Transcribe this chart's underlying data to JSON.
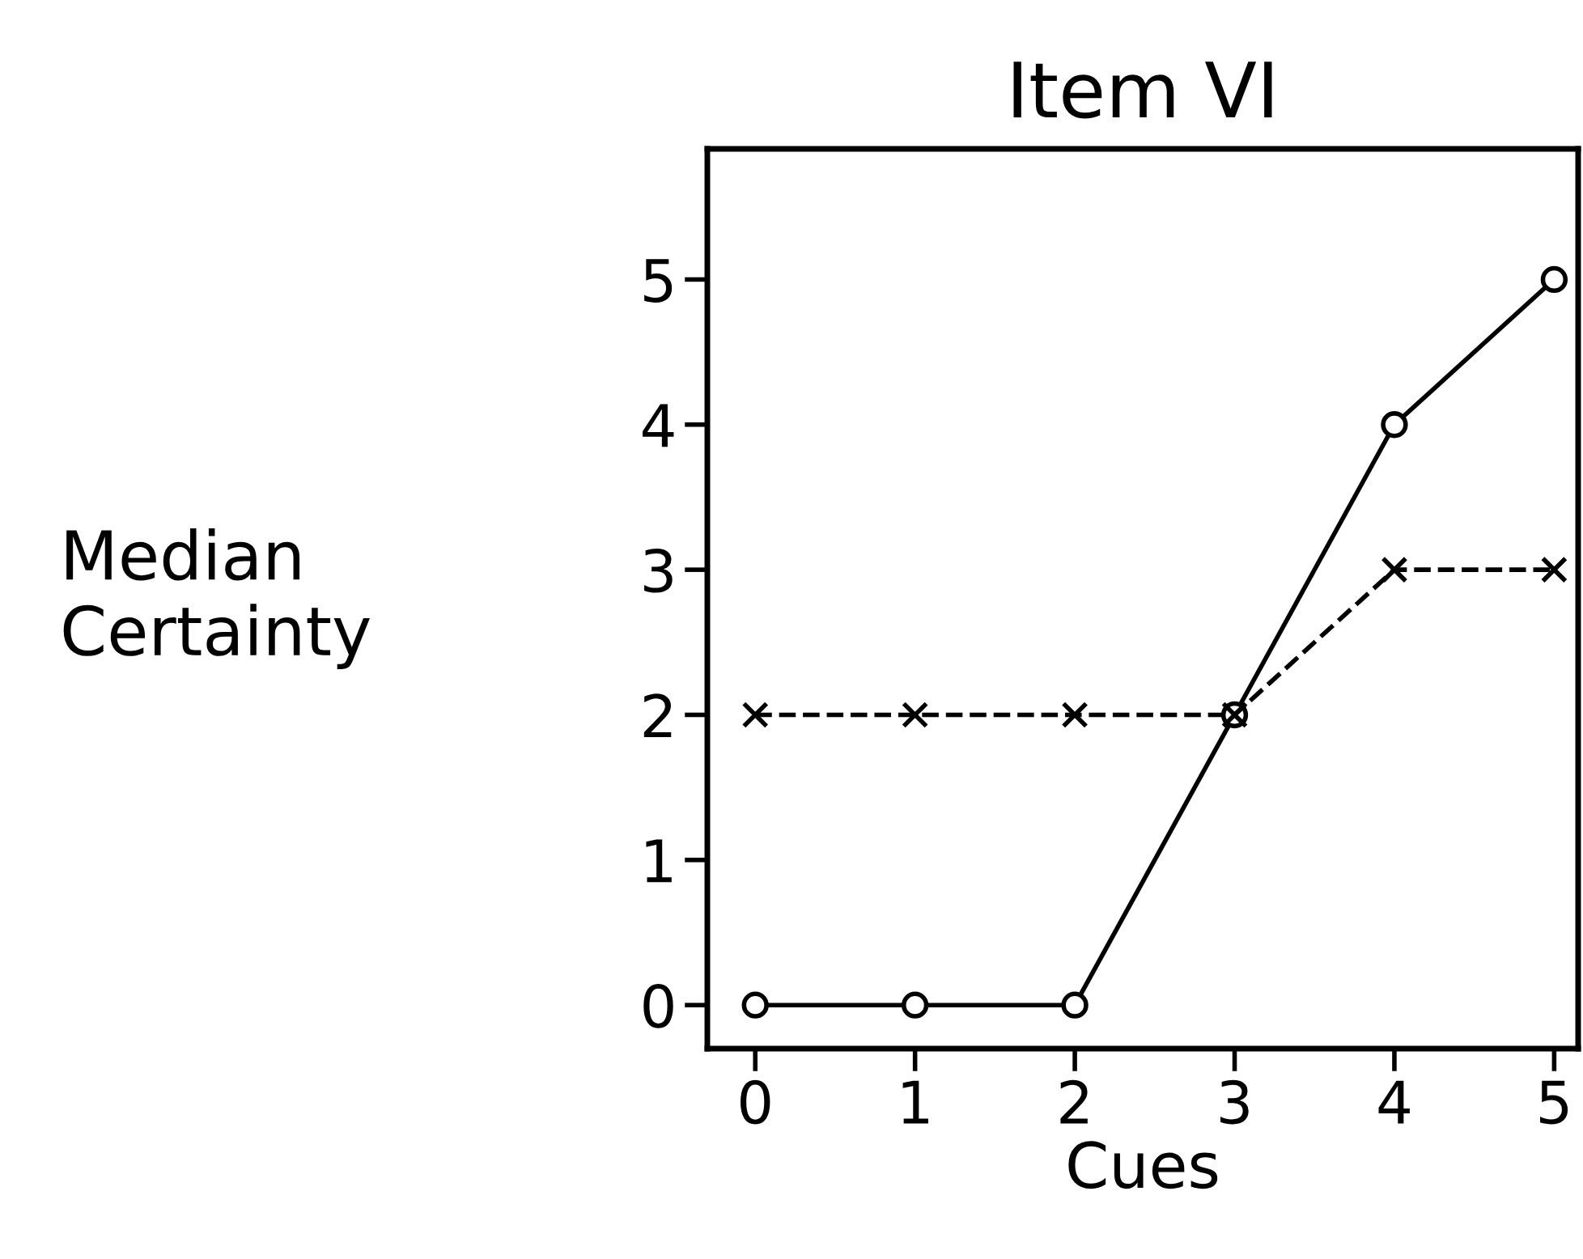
{
  "chart_data": {
    "type": "line",
    "title": "Item VI",
    "xlabel": "Cues",
    "ylabel": "Median Certainty",
    "x": [
      0,
      1,
      2,
      3,
      4,
      5
    ],
    "series": [
      {
        "color": "#000000",
        "values": [
          0,
          0,
          0,
          2,
          4,
          5
        ],
        "marker": "circle",
        "line_style": "solid"
      },
      {
        "color": "#000000",
        "values": [
          2,
          2,
          2,
          2,
          3,
          3
        ],
        "marker": "cross",
        "line_style": "dashed"
      }
    ],
    "xlim": [
      -0.3,
      5.15
    ],
    "ylim": [
      -0.3,
      5.9
    ],
    "xticks": [
      0,
      1,
      2,
      3,
      4,
      5
    ],
    "yticks": [
      0,
      1,
      2,
      3,
      4,
      5
    ],
    "grid": false,
    "legend": false
  }
}
